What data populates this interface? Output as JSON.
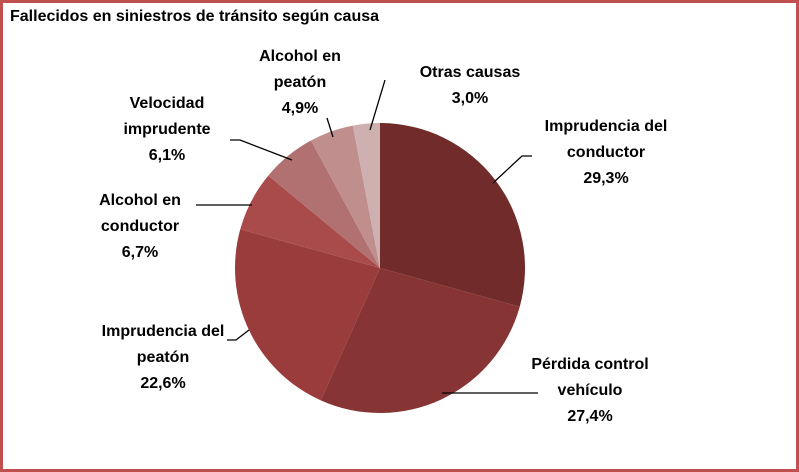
{
  "chart_data": {
    "type": "pie",
    "title": "Fallecidos en siniestros de tránsito según causa",
    "categories": [
      "Imprudencia del conductor",
      "Pérdida control vehículo",
      "Imprudencia del peatón",
      "Alcohol en conductor",
      "Velocidad imprudente",
      "Alcohol en peatón",
      "Otras causas"
    ],
    "values": [
      29.3,
      27.4,
      22.6,
      6.7,
      6.1,
      4.9,
      3.0
    ],
    "value_labels": [
      "29,3%",
      "27,4%",
      "22,6%",
      "6,7%",
      "6,1%",
      "4,9%",
      "3,0%"
    ],
    "colors": [
      "#722b2b",
      "#863434",
      "#993c3b",
      "#a84b4a",
      "#b07170",
      "#bf8e8d",
      "#cfb0b0"
    ]
  }
}
